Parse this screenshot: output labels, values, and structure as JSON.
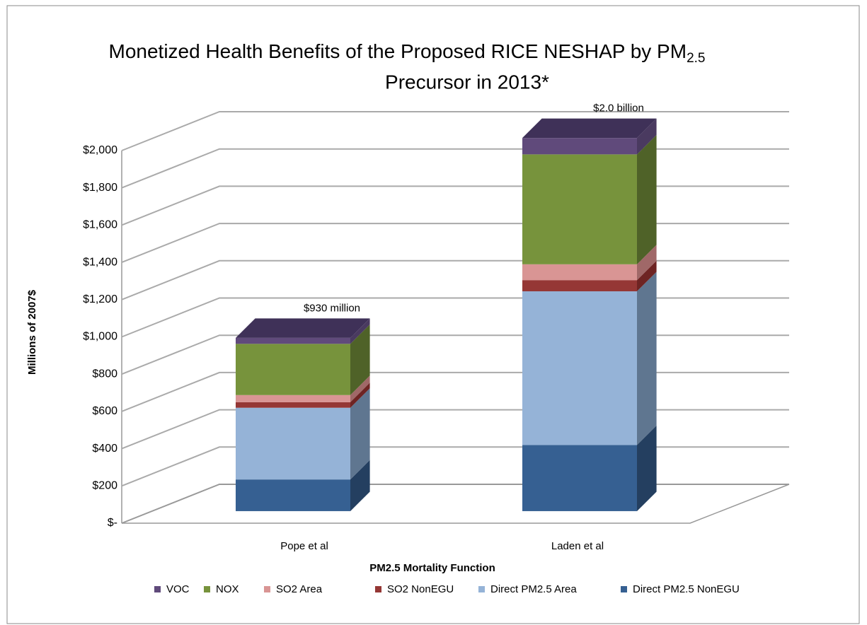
{
  "chart_data": {
    "type": "bar3d_stacked",
    "title": "Monetized Health Benefits of the Proposed RICE NESHAP by PM",
    "title_subscript": "2.5",
    "title_line2": "Precursor in 2013*",
    "x_label": "PM2.5 Mortality Function",
    "y_label": "Millions of 2007$",
    "categories": [
      "Pope et al",
      "Laden et al"
    ],
    "annotations": [
      "$930 million",
      "$2.0 billion"
    ],
    "series": [
      {
        "name": "VOC",
        "color": "#604a7b",
        "side": "#4a3a60",
        "top": "#3f3158",
        "values": [
          32,
          88
        ]
      },
      {
        "name": "NOX",
        "color": "#77933c",
        "side": "#4f6228",
        "values": [
          275,
          590
        ]
      },
      {
        "name": "SO2 Area",
        "color": "#d99594",
        "side": "#a06868",
        "values": [
          38,
          85
        ]
      },
      {
        "name": "SO2 NonEGU",
        "color": "#953735",
        "side": "#6e2423",
        "values": [
          30,
          60
        ]
      },
      {
        "name": "Direct PM2.5 Area",
        "color": "#95b3d7",
        "side": "#5f7690",
        "values": [
          385,
          825
        ]
      },
      {
        "name": "Direct PM2.5 NonEGU",
        "color": "#366092",
        "side": "#243f60",
        "values": [
          170,
          355
        ]
      }
    ],
    "ylim": [
      0,
      2000
    ],
    "yticks": [
      {
        "value": 0,
        "label": "$-"
      },
      {
        "value": 200,
        "label": "$200"
      },
      {
        "value": 400,
        "label": "$400"
      },
      {
        "value": 600,
        "label": "$600"
      },
      {
        "value": 800,
        "label": "$800"
      },
      {
        "value": 1000,
        "label": "$1,000"
      },
      {
        "value": 1200,
        "label": "$1,200"
      },
      {
        "value": 1400,
        "label": "$1,400"
      },
      {
        "value": 1600,
        "label": "$1,600"
      },
      {
        "value": 1800,
        "label": "$1,800"
      },
      {
        "value": 2000,
        "label": "$2,000"
      }
    ],
    "grid": true
  }
}
